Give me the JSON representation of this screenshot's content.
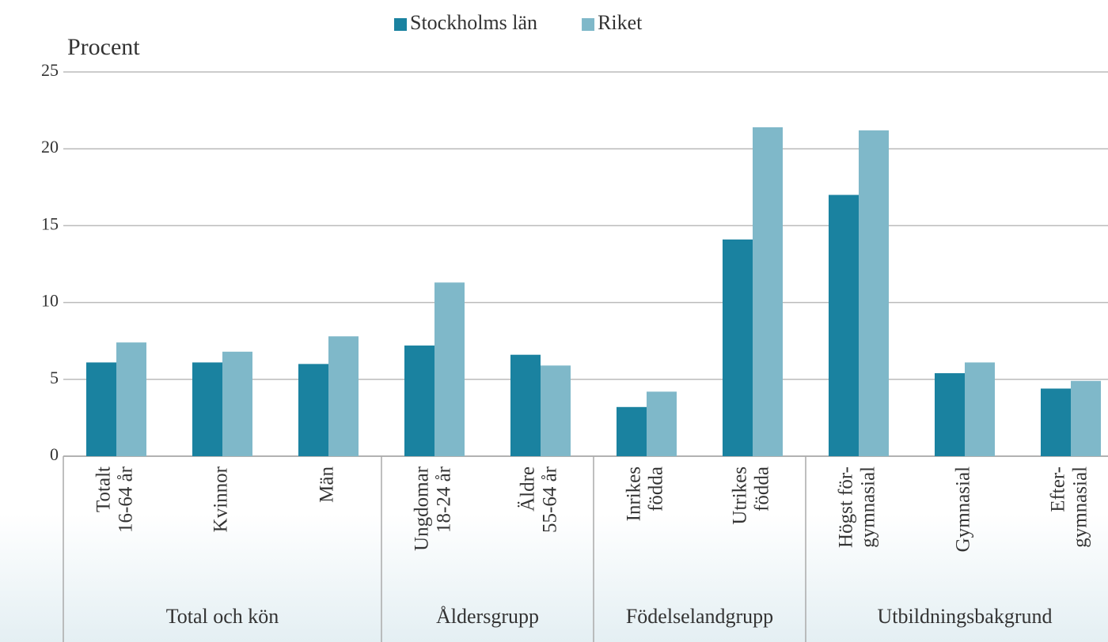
{
  "chart_data": {
    "type": "bar",
    "y_label": "Procent",
    "categories": [
      [
        "Totalt",
        "16-64 år"
      ],
      [
        "Kvinnor"
      ],
      [
        "Män"
      ],
      [
        "Ungdomar",
        "18-24 år"
      ],
      [
        "Äldre",
        "55-64 år"
      ],
      [
        "Inrikes",
        "födda"
      ],
      [
        "Utrikes",
        "födda"
      ],
      [
        "Högst för-",
        "gymnasial"
      ],
      [
        "Gymnasial"
      ],
      [
        "Efter-",
        "gymnasial"
      ]
    ],
    "groups": [
      {
        "name": "Total och kön",
        "count": 3
      },
      {
        "name": "Åldersgrupp",
        "count": 2
      },
      {
        "name": "Födelselandgrupp",
        "count": 2
      },
      {
        "name": "Utbildningsbakgrund",
        "count": 3
      }
    ],
    "series": [
      {
        "name": "Stockholms län",
        "color": "#1a82a0",
        "values": [
          6.1,
          6.1,
          6.0,
          7.2,
          6.6,
          3.2,
          14.1,
          17.0,
          5.4,
          4.4
        ]
      },
      {
        "name": "Riket",
        "color": "#7fb8c9",
        "values": [
          7.4,
          6.8,
          7.8,
          11.3,
          5.9,
          4.2,
          21.4,
          21.2,
          6.1,
          4.9
        ]
      }
    ],
    "ylim": [
      0,
      25
    ],
    "yticks": [
      0,
      5,
      10,
      15,
      20,
      25
    ],
    "grid": true,
    "legend": "top"
  }
}
